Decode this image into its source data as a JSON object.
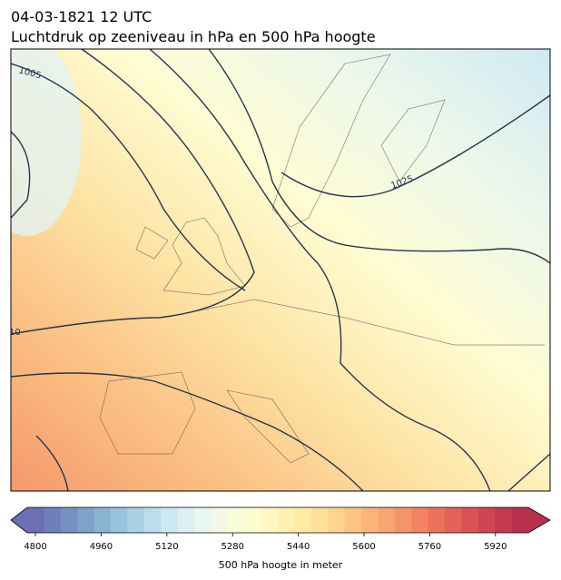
{
  "header": {
    "title_line1": "04-03-1821 12 UTC",
    "title_line2": "Luchtdruk op zeeniveau in hPa en 500 hPa hoogte"
  },
  "contour_labels": [
    "1005",
    "1025",
    "10"
  ],
  "colorbar": {
    "label": "500 hPa hoogte in meter",
    "lim": [
      4780,
      6000
    ],
    "ticks": [
      4800,
      4960,
      5120,
      5280,
      5440,
      5600,
      5760,
      5920
    ],
    "colors": [
      "#6b6fb3",
      "#6f7fbb",
      "#7590c2",
      "#7ea2c9",
      "#8ab3d2",
      "#99c3dc",
      "#aad2e4",
      "#bbdeec",
      "#cce8f2",
      "#dbf0f5",
      "#e8f6f1",
      "#f2f9e6",
      "#f8fcd9",
      "#fdfccf",
      "#fff7c2",
      "#fff0b3",
      "#feeaa5",
      "#fde09a",
      "#fdd48e",
      "#fcc583",
      "#fbb57a",
      "#f9a571",
      "#f69469",
      "#f28362",
      "#ec725c",
      "#e46157",
      "#da5254",
      "#cf4552",
      "#c43a51",
      "#b9304f"
    ]
  }
}
